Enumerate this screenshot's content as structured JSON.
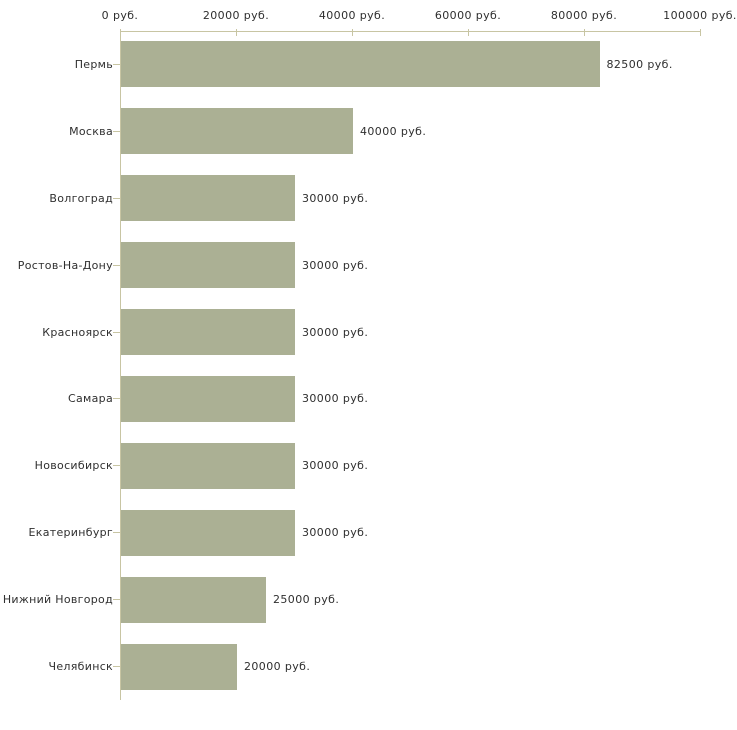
{
  "chart_data": {
    "type": "bar",
    "orientation": "horizontal",
    "title": "",
    "xlabel": "",
    "ylabel": "",
    "categories": [
      "Пермь",
      "Москва",
      "Волгоград",
      "Ростов-На-Дону",
      "Красноярск",
      "Самара",
      "Новосибирск",
      "Екатеринбург",
      "Нижний Новгород",
      "Челябинск"
    ],
    "values": [
      82500,
      40000,
      30000,
      30000,
      30000,
      30000,
      30000,
      30000,
      25000,
      20000
    ],
    "value_labels": [
      "82500 руб.",
      "40000 руб.",
      "30000 руб.",
      "30000 руб.",
      "30000 руб.",
      "30000 руб.",
      "30000 руб.",
      "30000 руб.",
      "25000 руб.",
      "20000 руб."
    ],
    "x_ticks": [
      0,
      20000,
      40000,
      60000,
      80000,
      100000
    ],
    "x_tick_labels": [
      "0 руб.",
      "20000 руб.",
      "40000 руб.",
      "60000 руб.",
      "80000 руб.",
      "100000 руб."
    ],
    "xlim": [
      0,
      100000
    ],
    "grid": false,
    "legend": false,
    "colors": {
      "bar": "#abb094",
      "axis": "#c8c5a3",
      "text": "#2f2f2f",
      "background": "#ffffff"
    }
  }
}
